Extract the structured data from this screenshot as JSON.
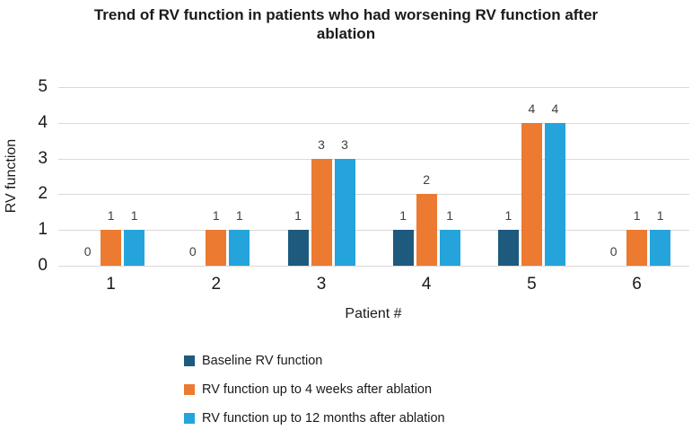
{
  "title": "Trend of RV function in patients who had worsening RV function after ablation",
  "y_axis": {
    "title": "RV function",
    "ticks": [
      0,
      1,
      2,
      3,
      4,
      5
    ]
  },
  "x_axis": {
    "title": "Patient #"
  },
  "colors": {
    "baseline_series": "#1d5a7d",
    "four_weeks_series": "#ec7a30",
    "twelve_months_series": "#25a3db",
    "gridline": "#d9d9d9",
    "data_label": "#404040",
    "text": "#1a1a1a"
  },
  "chart_data": {
    "type": "bar",
    "title": "Trend of RV function in patients who had worsening RV function after ablation",
    "xlabel": "Patient #",
    "ylabel": "RV function",
    "ylim": [
      0,
      5
    ],
    "grid": true,
    "data_labels": true,
    "legend_position": "bottom-left",
    "categories": [
      "1",
      "2",
      "3",
      "4",
      "5",
      "6"
    ],
    "series": [
      {
        "name": "Baseline RV function",
        "color": "#1d5a7d",
        "values": [
          0,
          0,
          1,
          1,
          1,
          0
        ]
      },
      {
        "name": "RV function up to 4 weeks after ablation",
        "color": "#ec7a30",
        "values": [
          1,
          1,
          3,
          2,
          4,
          1
        ]
      },
      {
        "name": "RV function up to 12 months after ablation",
        "color": "#25a3db",
        "values": [
          1,
          1,
          3,
          1,
          4,
          1
        ]
      }
    ]
  }
}
